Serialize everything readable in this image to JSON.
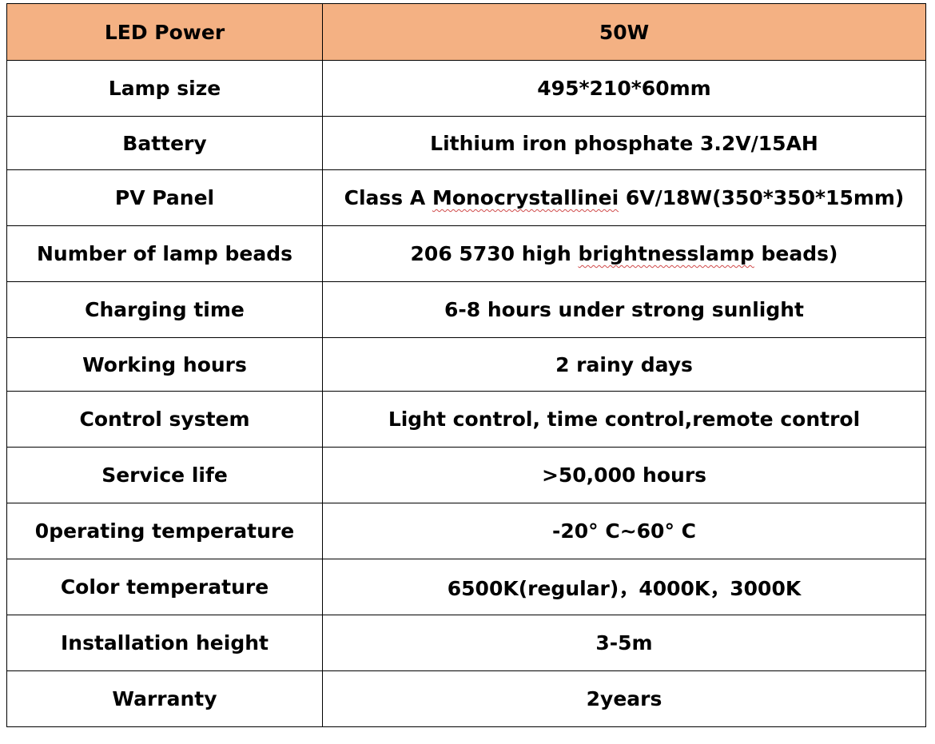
{
  "header": {
    "label": "LED Power",
    "value": "50W",
    "background": "#f4b183"
  },
  "rows": [
    {
      "label": "Lamp size",
      "value": "495*210*60mm"
    },
    {
      "label": "Battery",
      "value": "Lithium iron phosphate 3.2V/15AH"
    },
    {
      "label": "PV Panel",
      "value_pre": "Class A ",
      "value_flag": "Monocrystallinei",
      "value_post": " 6V/18W(350*350*15mm)"
    },
    {
      "label": "Number of lamp beads",
      "value_pre": "206 5730 high ",
      "value_flag": "brightnesslamp",
      "value_post": " beads)"
    },
    {
      "label": "Charging time",
      "value": "6-8 hours under strong sunlight"
    },
    {
      "label": "Working hours",
      "value": "2 rainy days"
    },
    {
      "label": "Control system",
      "value": "Light control, time control,remote control"
    },
    {
      "label": "Service life",
      "value": ">50,000 hours"
    },
    {
      "label": "0perating temperature",
      "value": "-20° C~60° C"
    },
    {
      "label": "Color temperature",
      "value": "6500K(regular)，4000K，3000K"
    },
    {
      "label": "Installation height",
      "value": "3-5m"
    },
    {
      "label": "Warranty",
      "value": "2years"
    }
  ]
}
